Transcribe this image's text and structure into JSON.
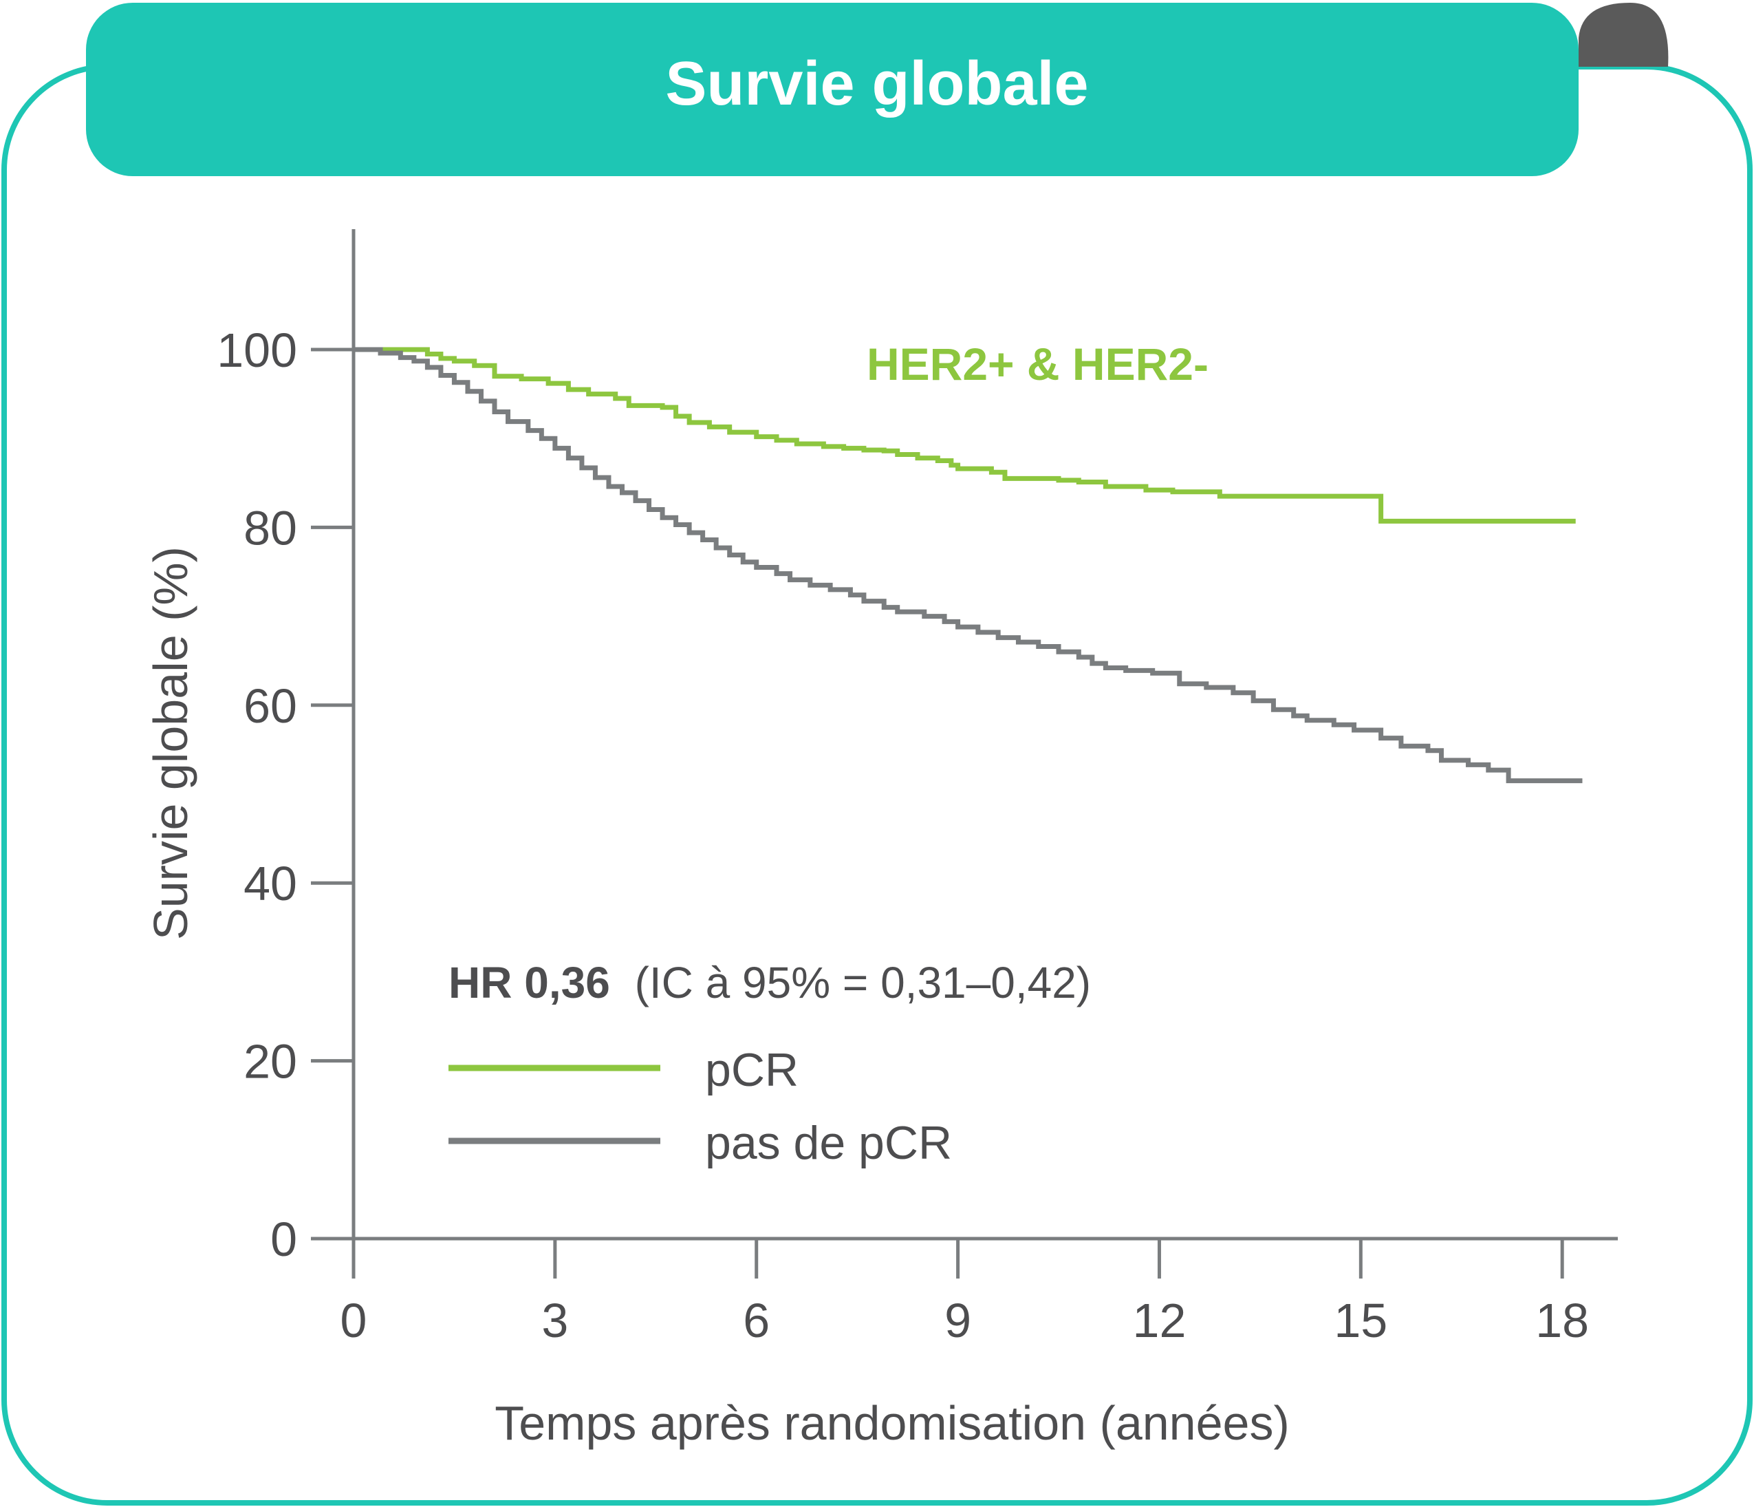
{
  "card": {
    "title": "Survie globale",
    "accent_color": "#1ec6b4",
    "fold_color": "#5a5a5a"
  },
  "chart_data": {
    "type": "line",
    "title": "Survie globale",
    "subtitle": "HER2+ & HER2-",
    "xlabel": "Temps après randomisation (années)",
    "ylabel": "Survie globale (%)",
    "xlim": [
      0,
      18.5
    ],
    "ylim": [
      0,
      113
    ],
    "x_ticks": [
      0,
      3,
      6,
      9,
      12,
      15,
      18
    ],
    "y_ticks": [
      0,
      20,
      40,
      60,
      80,
      100
    ],
    "x_tick_labels": [
      "0",
      "3",
      "6",
      "9",
      "12",
      "15",
      "18"
    ],
    "y_tick_labels": [
      "0",
      "20",
      "40",
      "60",
      "80",
      "100"
    ],
    "grid": false,
    "legend_position": "lower-left",
    "annotation": {
      "hr_label": "HR 0,36",
      "ci_label": "(IC à 95% = 0,31–0,42)"
    },
    "series": [
      {
        "name": "pCR",
        "color": "#8dc63f",
        "step": true,
        "points": [
          [
            0,
            100
          ],
          [
            0.95,
            100
          ],
          [
            1.1,
            99.5
          ],
          [
            1.3,
            99
          ],
          [
            1.5,
            98.7
          ],
          [
            1.8,
            98.2
          ],
          [
            2.1,
            97
          ],
          [
            2.5,
            96.7
          ],
          [
            2.9,
            96.2
          ],
          [
            3.2,
            95.5
          ],
          [
            3.5,
            95
          ],
          [
            3.9,
            94.5
          ],
          [
            4.1,
            93.7
          ],
          [
            4.6,
            93.5
          ],
          [
            4.8,
            92.5
          ],
          [
            5.0,
            91.8
          ],
          [
            5.3,
            91.3
          ],
          [
            5.6,
            90.7
          ],
          [
            6.0,
            90.2
          ],
          [
            6.3,
            89.8
          ],
          [
            6.6,
            89.4
          ],
          [
            7.0,
            89.1
          ],
          [
            7.3,
            88.9
          ],
          [
            7.6,
            88.7
          ],
          [
            7.9,
            88.6
          ],
          [
            8.1,
            88.2
          ],
          [
            8.4,
            87.8
          ],
          [
            8.7,
            87.5
          ],
          [
            8.9,
            87.0
          ],
          [
            9.0,
            86.6
          ],
          [
            9.5,
            86.2
          ],
          [
            9.7,
            85.5
          ],
          [
            10.5,
            85.3
          ],
          [
            10.8,
            85.1
          ],
          [
            11.2,
            84.6
          ],
          [
            11.8,
            84.2
          ],
          [
            12.2,
            84.0
          ],
          [
            12.9,
            83.5
          ],
          [
            13.5,
            83.5
          ],
          [
            15.25,
            83.5
          ],
          [
            15.3,
            80.7
          ],
          [
            18.2,
            80.7
          ]
        ]
      },
      {
        "name": "pas de pCR",
        "color": "#7a7d7f",
        "step": true,
        "points": [
          [
            0,
            100
          ],
          [
            0.4,
            99.6
          ],
          [
            0.7,
            99.1
          ],
          [
            0.9,
            98.7
          ],
          [
            1.1,
            98.0
          ],
          [
            1.3,
            97.1
          ],
          [
            1.5,
            96.3
          ],
          [
            1.7,
            95.3
          ],
          [
            1.9,
            94.2
          ],
          [
            2.1,
            93.0
          ],
          [
            2.3,
            91.9
          ],
          [
            2.6,
            90.9
          ],
          [
            2.8,
            90.0
          ],
          [
            3.0,
            88.9
          ],
          [
            3.2,
            87.8
          ],
          [
            3.4,
            86.7
          ],
          [
            3.6,
            85.6
          ],
          [
            3.8,
            84.6
          ],
          [
            4.0,
            83.9
          ],
          [
            4.2,
            83.0
          ],
          [
            4.4,
            82.0
          ],
          [
            4.6,
            81.1
          ],
          [
            4.8,
            80.3
          ],
          [
            5.0,
            79.4
          ],
          [
            5.2,
            78.6
          ],
          [
            5.4,
            77.7
          ],
          [
            5.6,
            76.9
          ],
          [
            5.8,
            76.1
          ],
          [
            6.0,
            75.5
          ],
          [
            6.3,
            74.8
          ],
          [
            6.5,
            74.1
          ],
          [
            6.8,
            73.5
          ],
          [
            7.1,
            73.0
          ],
          [
            7.4,
            72.4
          ],
          [
            7.6,
            71.7
          ],
          [
            7.9,
            71.0
          ],
          [
            8.1,
            70.5
          ],
          [
            8.5,
            70.0
          ],
          [
            8.8,
            69.4
          ],
          [
            9.0,
            68.8
          ],
          [
            9.3,
            68.2
          ],
          [
            9.6,
            67.6
          ],
          [
            9.9,
            67.1
          ],
          [
            10.2,
            66.6
          ],
          [
            10.5,
            66.0
          ],
          [
            10.8,
            65.4
          ],
          [
            11.0,
            64.7
          ],
          [
            11.2,
            64.2
          ],
          [
            11.5,
            63.9
          ],
          [
            11.9,
            63.6
          ],
          [
            12.3,
            62.4
          ],
          [
            12.7,
            62.0
          ],
          [
            13.1,
            61.4
          ],
          [
            13.4,
            60.5
          ],
          [
            13.7,
            59.5
          ],
          [
            14.0,
            58.8
          ],
          [
            14.2,
            58.3
          ],
          [
            14.6,
            57.8
          ],
          [
            14.9,
            57.2
          ],
          [
            15.3,
            56.3
          ],
          [
            15.6,
            55.4
          ],
          [
            16.0,
            54.9
          ],
          [
            16.2,
            53.8
          ],
          [
            16.6,
            53.3
          ],
          [
            16.9,
            52.7
          ],
          [
            17.2,
            51.5
          ],
          [
            18.3,
            51.5
          ]
        ]
      }
    ]
  }
}
